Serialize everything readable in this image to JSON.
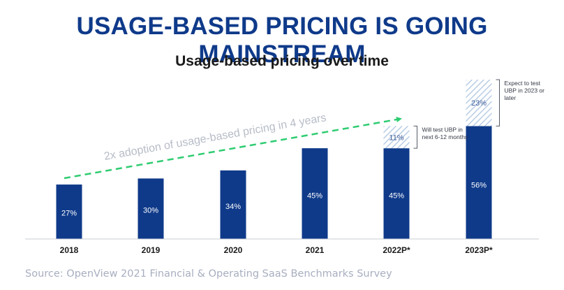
{
  "header": {
    "title": "USAGE-BASED PRICING IS GOING MAINSTREAM",
    "subtitle": "Usage-based pricing over time"
  },
  "footer": {
    "source": "Source: OpenView 2021 Financial & Operating SaaS Benchmarks Survey"
  },
  "colors": {
    "bar": "#0f3a8a",
    "title": "#0f3a8a",
    "hatch": "#b9cde6",
    "arrow": "#2ecc71",
    "annotation_text": "#b7bcc7"
  },
  "chart_data": {
    "type": "bar",
    "categories": [
      "2018",
      "2019",
      "2020",
      "2021",
      "2022P*",
      "2023P*"
    ],
    "series": [
      {
        "values": [
          27,
          30,
          34,
          45,
          45,
          56
        ],
        "labels": [
          "27%",
          "30%",
          "34%",
          "45%",
          "45%",
          "56%"
        ]
      },
      {
        "values": [
          0,
          0,
          0,
          0,
          11,
          23
        ],
        "labels": [
          "",
          "",
          "",
          "",
          "11%",
          "23%"
        ],
        "style": "hatched"
      }
    ],
    "ylim": [
      0,
      79
    ],
    "stacked": true,
    "grid": false,
    "annotations": [
      {
        "category": "2022P*",
        "text": [
          "Will test UBP in",
          "next 6-12 months"
        ]
      },
      {
        "category": "2023P*",
        "text": [
          "Expect to test",
          "UBP in 2023 or",
          "later"
        ]
      }
    ],
    "trend_arrow": {
      "label": "2x adoption of usage-based pricing in 4 years",
      "style": "dashed"
    }
  }
}
